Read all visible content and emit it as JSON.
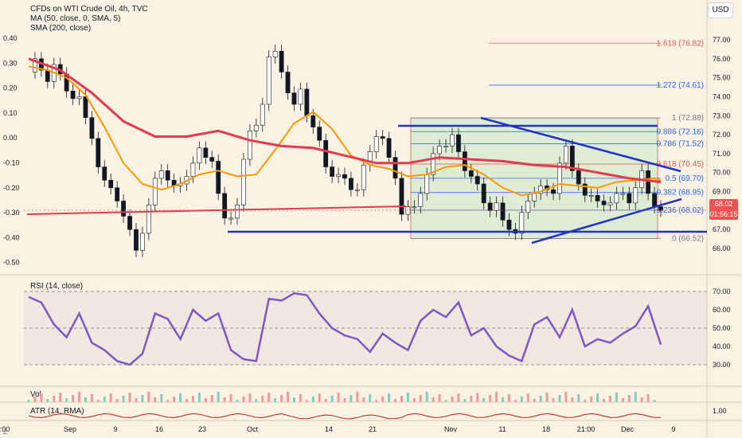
{
  "header": {
    "symbol_title": "CFDs on WTI Crude Oil, 4h, TVC",
    "ma_label": "MA (50, close, 0, SMA, 5)",
    "sma_label": "SMA (200, close)",
    "currency_button": "USD"
  },
  "price_tag": {
    "price": "68.02",
    "countdown": "01:56:15"
  },
  "corner_left": "Z",
  "colors": {
    "background": "#faf3e3",
    "ma50": "#ff9800",
    "sma200": "#e53950",
    "up_candle": "#26a69a",
    "down_candle": "#ef5350",
    "trendline": "#2032c8",
    "rsi": "#7e57c2",
    "fib_box": "#c8e6c9"
  },
  "chart_data": [
    {
      "type": "line",
      "panel": "price",
      "right_axis_ticks": [
        77.0,
        76.0,
        75.0,
        74.0,
        73.0,
        72.0,
        71.0,
        70.0,
        69.0,
        68.0,
        67.0,
        66.0
      ],
      "left_axis_ticks": [
        "0.40",
        "0.30",
        "0.20",
        "0.10",
        "0.00",
        "-0.10",
        "-0.20",
        "-0.30",
        "-0.40",
        "-0.50"
      ],
      "x_ticks": [
        ":00",
        "Sep",
        "9",
        "16",
        "23",
        "Oct",
        "14",
        "21",
        "Nov",
        "11",
        "18",
        "21:00",
        "Dec",
        "9"
      ],
      "ylim": [
        65.5,
        78.0
      ],
      "series": [
        {
          "name": "Price",
          "x": [
            0,
            1,
            2,
            3,
            4,
            5,
            6,
            7,
            8,
            9,
            10,
            11,
            12,
            13,
            14,
            15,
            16,
            17,
            18,
            19,
            20,
            21,
            22,
            23,
            24,
            25,
            26,
            27,
            28,
            29,
            30,
            31,
            32,
            33,
            34,
            35,
            36,
            37,
            38,
            39,
            40,
            41,
            42,
            43,
            44,
            45,
            46,
            47,
            48,
            49,
            50,
            51,
            52,
            53,
            54,
            55,
            56,
            57,
            58,
            59,
            60,
            61,
            62,
            63,
            64,
            65,
            66,
            67,
            68,
            69,
            70,
            71,
            72,
            73,
            74,
            75,
            76,
            77,
            78,
            79,
            80,
            81,
            82,
            83,
            84,
            85,
            86,
            87,
            88,
            89,
            90,
            91,
            92,
            93,
            94,
            95,
            96,
            97,
            98,
            99,
            100
          ],
          "values": [
            75.3,
            76.0,
            75.4,
            74.8,
            75.7,
            75.2,
            74.3,
            73.9,
            74.0,
            72.9,
            71.8,
            70.3,
            69.6,
            69.2,
            68.5,
            67.7,
            67.0,
            65.9,
            66.8,
            68.3,
            69.7,
            70.1,
            69.6,
            69.3,
            69.4,
            69.8,
            70.5,
            71.3,
            70.8,
            70.6,
            68.9,
            67.6,
            67.6,
            68.3,
            70.7,
            72.2,
            72.5,
            73.6,
            76.1,
            76.4,
            75.3,
            74.2,
            73.6,
            74.4,
            73.0,
            72.4,
            71.7,
            70.3,
            69.8,
            69.9,
            69.7,
            69.1,
            69.1,
            70.4,
            71.1,
            71.9,
            71.8,
            70.8,
            69.7,
            67.8,
            68.2,
            68.2,
            68.9,
            69.9,
            71.0,
            71.4,
            71.4,
            72.0,
            71.1,
            70.1,
            69.8,
            69.4,
            68.4,
            68.0,
            68.4,
            67.5,
            67.0,
            66.8,
            67.9,
            68.5,
            68.9,
            69.3,
            69.1,
            68.9,
            70.5,
            71.4,
            70.1,
            69.4,
            68.8,
            68.8,
            68.5,
            68.3,
            68.4,
            68.9,
            68.9,
            68.4,
            69.2,
            70.1,
            68.9,
            68.2,
            68.0
          ]
        },
        {
          "name": "MA (50, close, 0, SMA, 5)",
          "x": [
            0,
            3,
            6,
            9,
            12,
            15,
            18,
            21,
            24,
            27,
            30,
            33,
            36,
            39,
            42,
            45,
            48,
            51,
            54,
            57,
            60,
            63,
            66,
            69,
            72,
            75,
            78,
            81,
            84,
            87,
            90,
            93,
            96,
            99,
            100
          ],
          "values": [
            75.6,
            75.4,
            75.0,
            74.1,
            72.4,
            70.5,
            69.4,
            69.1,
            69.4,
            69.9,
            70.1,
            69.8,
            69.9,
            71.2,
            72.6,
            73.2,
            72.3,
            70.9,
            70.4,
            70.2,
            69.8,
            69.9,
            70.3,
            70.4,
            69.9,
            69.2,
            68.8,
            69.0,
            69.4,
            69.3,
            69.2,
            69.5,
            69.6,
            69.7,
            69.6
          ]
        },
        {
          "name": "SMA (200, close)",
          "x": [
            0,
            5,
            10,
            15,
            20,
            25,
            30,
            35,
            40,
            45,
            50,
            55,
            60,
            65,
            70,
            75,
            80,
            85,
            90,
            95,
            100
          ],
          "values": [
            76.0,
            75.4,
            74.2,
            72.7,
            71.9,
            71.9,
            72.2,
            71.7,
            71.4,
            71.3,
            70.9,
            70.5,
            70.5,
            70.8,
            70.7,
            70.6,
            70.4,
            70.3,
            70.0,
            69.7,
            69.5
          ]
        }
      ],
      "fibonacci": [
        {
          "level": "1.618 (76.82)",
          "price": 76.82,
          "color": "#ef5350"
        },
        {
          "level": "1.272 (74.61)",
          "price": 74.61,
          "color": "#2962ff"
        },
        {
          "level": "1 (72.88)",
          "price": 72.88,
          "color": "#787b86"
        },
        {
          "level": "0.886 (72.16)",
          "price": 72.16,
          "color": "#2962ff"
        },
        {
          "level": "0.786 (71.52)",
          "price": 71.52,
          "color": "#2962ff"
        },
        {
          "level": "0.618 (70.45)",
          "price": 70.45,
          "color": "#ef5350"
        },
        {
          "level": "0.5 (69.70)",
          "price": 69.7,
          "color": "#2962ff"
        },
        {
          "level": "0.382 (68.95)",
          "price": 68.95,
          "color": "#2962ff"
        },
        {
          "level": "0.236 (68.02)",
          "price": 68.02,
          "color": "#2962ff"
        },
        {
          "level": "0 (66.52)",
          "price": 66.52,
          "color": "#787b86"
        }
      ]
    },
    {
      "type": "line",
      "panel": "rsi",
      "title": "RSI (14, close)",
      "y_ticks": [
        "70.00",
        "60.00",
        "50.00",
        "40.00",
        "30.00"
      ],
      "ylim": [
        25,
        75
      ],
      "series": [
        {
          "name": "RSI",
          "x": [
            0,
            2,
            4,
            6,
            8,
            10,
            12,
            14,
            16,
            18,
            20,
            22,
            24,
            26,
            28,
            30,
            32,
            34,
            36,
            38,
            40,
            42,
            44,
            46,
            48,
            50,
            52,
            54,
            56,
            58,
            60,
            62,
            64,
            66,
            68,
            70,
            72,
            74,
            76,
            78,
            80,
            82,
            84,
            86,
            88,
            90,
            92,
            94,
            96,
            98,
            100
          ],
          "values": [
            67,
            64,
            52,
            45,
            58,
            42,
            38,
            32,
            30,
            36,
            58,
            55,
            44,
            60,
            54,
            58,
            38,
            33,
            32,
            66,
            65,
            69,
            68,
            58,
            50,
            46,
            44,
            37,
            47,
            42,
            38,
            54,
            60,
            56,
            64,
            46,
            50,
            40,
            35,
            32,
            52,
            56,
            45,
            60,
            40,
            44,
            42,
            47,
            51,
            62,
            41
          ]
        }
      ]
    },
    {
      "type": "bar",
      "panel": "volume",
      "title": "Vol"
    },
    {
      "type": "line",
      "panel": "atr",
      "title": "ATR (14, RMA)",
      "y_ticks": [
        "1.00"
      ]
    }
  ]
}
